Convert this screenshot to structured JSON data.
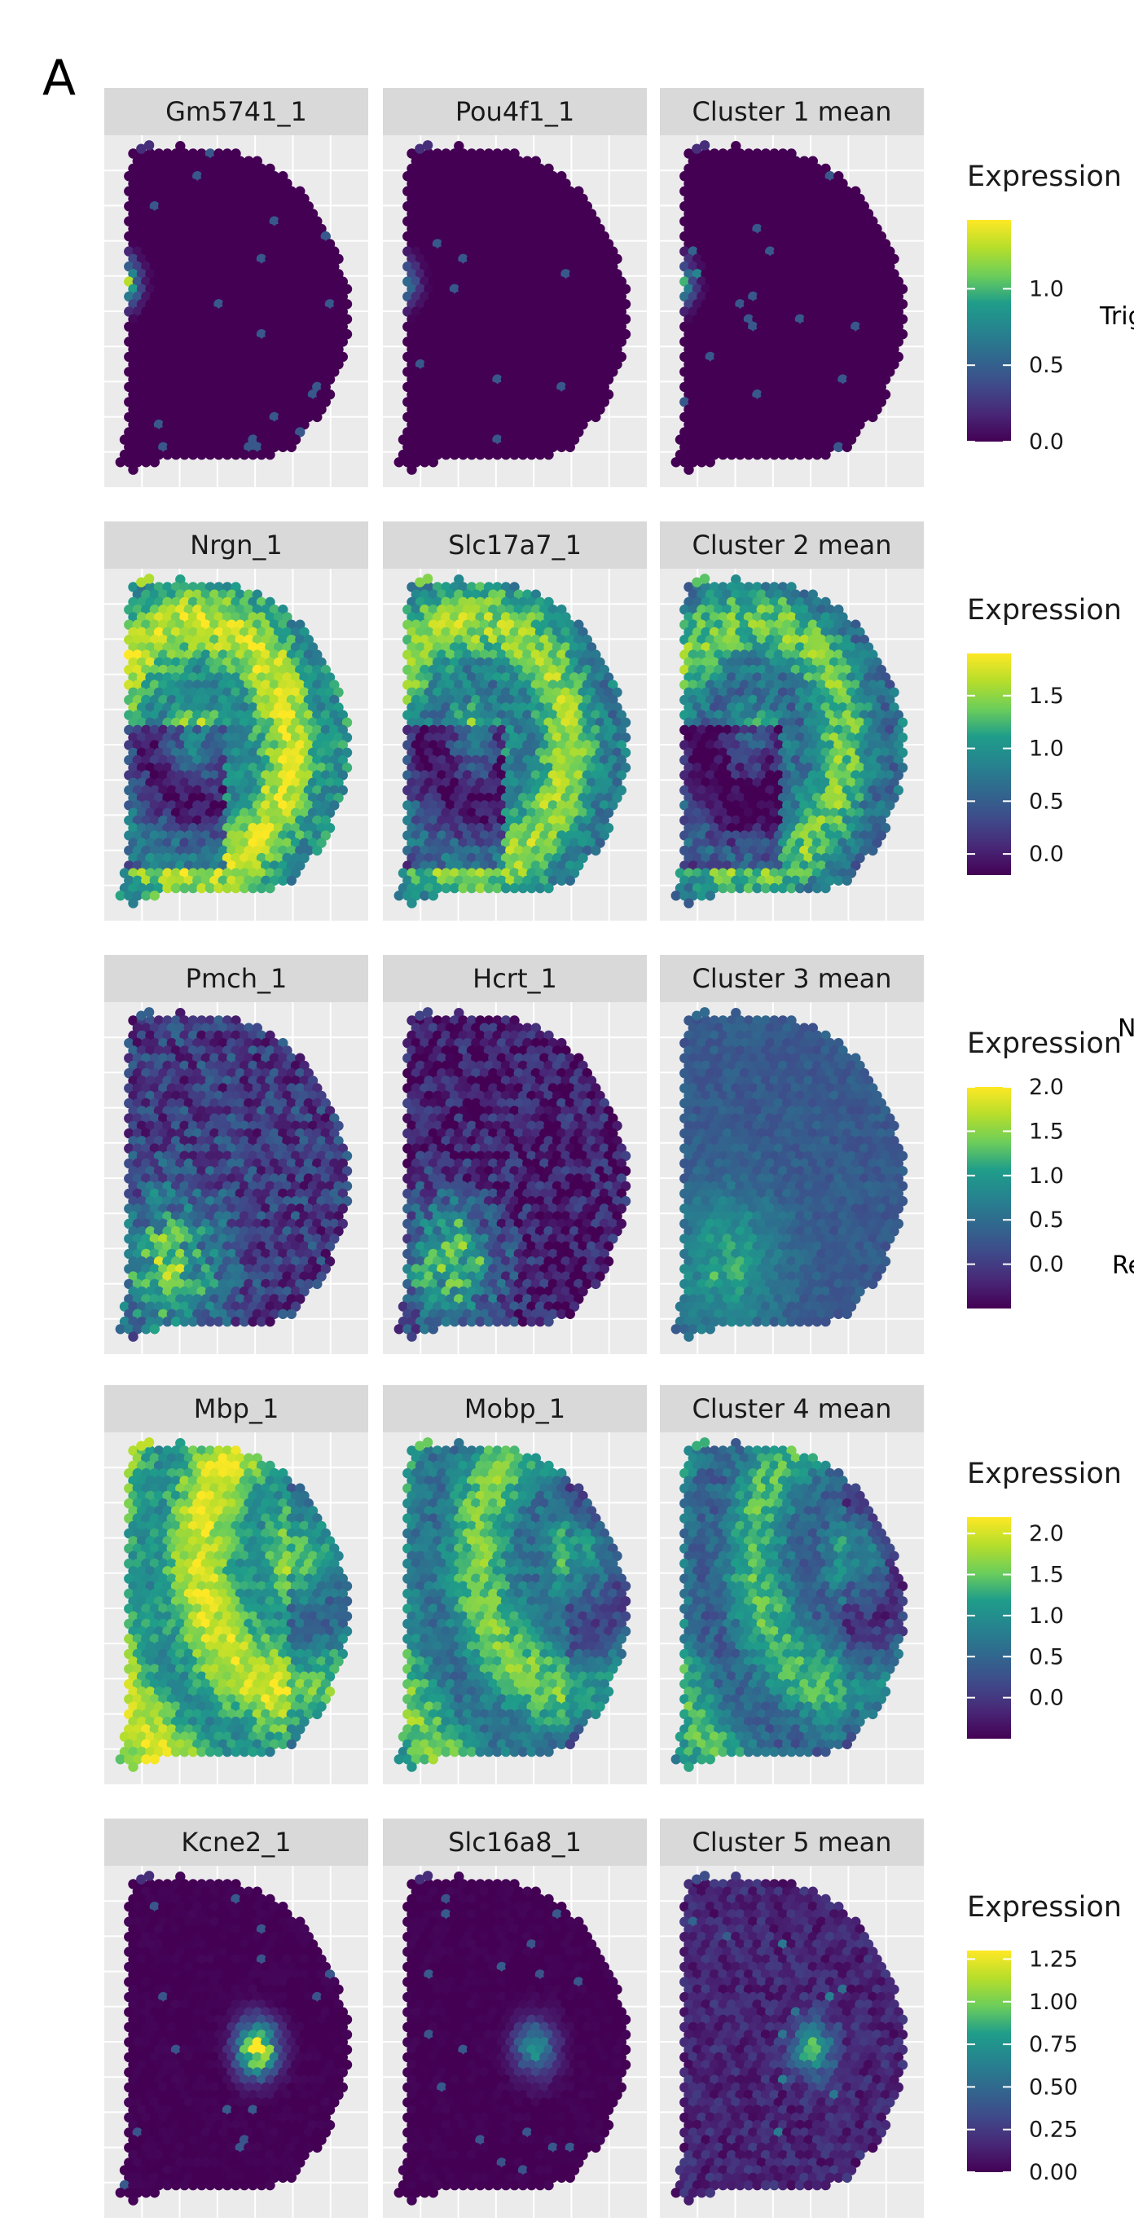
{
  "panel_letter": "A",
  "chart_data": [
    {
      "type": "heatmap",
      "panels": [
        "Gm5741_1",
        "Pou4f1_1",
        "Cluster 1 mean"
      ],
      "legend_title": "Expression",
      "colormap": "viridis",
      "scale_range": [
        0.0,
        1.45
      ],
      "ticks": [
        0.0,
        0.5,
        1.0
      ],
      "tick_labels": [
        "0.0",
        "0.5",
        "1.0"
      ],
      "hotspots": [
        {
          "x": 0.06,
          "y": 0.42,
          "radius": 0.07,
          "peak": [
            1.35,
            0.95,
            1.05
          ]
        }
      ],
      "background": [
        0.0,
        0.0,
        0.0
      ],
      "side_label": "Trig"
    },
    {
      "type": "heatmap",
      "panels": [
        "Nrgn_1",
        "Slc17a7_1",
        "Cluster 2 mean"
      ],
      "legend_title": "Expression",
      "colormap": "viridis",
      "scale_range": [
        -0.2,
        1.9
      ],
      "ticks": [
        0.0,
        0.5,
        1.0,
        1.5
      ],
      "tick_labels": [
        "0.0",
        "0.5",
        "1.0",
        "1.5"
      ],
      "hotspots": [],
      "background": [
        1.3,
        1.15,
        1.0
      ],
      "side_label": ""
    },
    {
      "type": "heatmap",
      "panels": [
        "Pmch_1",
        "Hcrt_1",
        "Cluster 3 mean"
      ],
      "legend_title": "Expression",
      "colormap": "viridis",
      "scale_range": [
        -0.5,
        2.0
      ],
      "ticks": [
        0.0,
        0.5,
        1.0,
        1.5,
        2.0
      ],
      "tick_labels": [
        "0.0",
        "0.5",
        "1.0",
        "1.5",
        "2.0"
      ],
      "hotspots": [
        {
          "x": 0.25,
          "y": 0.75,
          "radius": 0.2,
          "peak": [
            1.4,
            1.6,
            0.8
          ]
        }
      ],
      "background": [
        0.0,
        -0.3,
        0.1
      ],
      "side_label": "N"
    },
    {
      "type": "heatmap",
      "panels": [
        "Mbp_1",
        "Mobp_1",
        "Cluster 4 mean"
      ],
      "legend_title": "Expression",
      "colormap": "viridis",
      "scale_range": [
        -0.5,
        2.2
      ],
      "ticks": [
        0.0,
        0.5,
        1.0,
        1.5,
        2.0
      ],
      "tick_labels": [
        "0.0",
        "0.5",
        "1.0",
        "1.5",
        "2.0"
      ],
      "hotspots": [],
      "background": [
        1.5,
        1.1,
        0.9
      ],
      "side_label": ""
    },
    {
      "type": "heatmap",
      "panels": [
        "Kcne2_1",
        "Slc16a8_1",
        "Cluster 5 mean"
      ],
      "legend_title": "Expression",
      "colormap": "viridis",
      "scale_range": [
        0.0,
        1.3
      ],
      "ticks": [
        0.0,
        0.25,
        0.5,
        0.75,
        1.0,
        1.25
      ],
      "tick_labels": [
        "0.00",
        "0.25",
        "0.50",
        "0.75",
        "1.00",
        "1.25"
      ],
      "hotspots": [
        {
          "x": 0.58,
          "y": 0.52,
          "radius": 0.08,
          "peak": [
            1.2,
            0.7,
            0.75
          ]
        }
      ],
      "background": [
        0.0,
        0.0,
        0.15
      ],
      "side_label": ""
    }
  ],
  "extra_side_labels": [
    "Re"
  ]
}
